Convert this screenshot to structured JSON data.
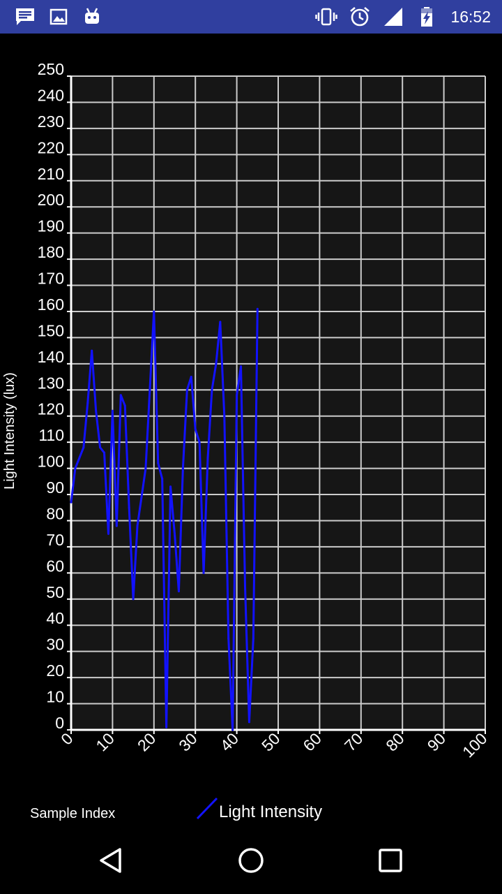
{
  "status_bar": {
    "time": "16:52",
    "left_icons": [
      "message-icon",
      "image-icon",
      "android-icon"
    ],
    "right_icons": [
      "vibrate-icon",
      "alarm-icon",
      "signal-icon",
      "battery-charging-icon"
    ],
    "background": "#303f9f"
  },
  "chart_data": {
    "type": "line",
    "title": "",
    "xlabel": "Sample Index",
    "ylabel": "Light Intensity (lux)",
    "xlim": [
      0,
      100
    ],
    "ylim": [
      0,
      250
    ],
    "x_ticks": [
      "0",
      "10",
      "20",
      "30",
      "40",
      "50",
      "60",
      "70",
      "80",
      "90",
      "100"
    ],
    "y_ticks": [
      "0",
      "10",
      "20",
      "30",
      "40",
      "50",
      "60",
      "70",
      "80",
      "90",
      "100",
      "110",
      "120",
      "130",
      "140",
      "150",
      "160",
      "170",
      "180",
      "190",
      "200",
      "210",
      "220",
      "230",
      "240",
      "250"
    ],
    "grid": true,
    "legend": "bottom-center",
    "plot_background": "#161616",
    "grid_color": "#cccccc",
    "series": [
      {
        "name": "Light Intensity",
        "color": "#1212ff",
        "x": [
          0,
          1,
          2,
          3,
          4,
          5,
          6,
          7,
          8,
          9,
          10,
          11,
          12,
          13,
          14,
          15,
          16,
          17,
          18,
          19,
          20,
          21,
          22,
          23,
          24,
          25,
          26,
          27,
          28,
          29,
          30,
          31,
          32,
          33,
          34,
          35,
          36,
          37,
          38,
          39,
          40,
          41,
          42,
          43,
          44,
          45
        ],
        "values": [
          87,
          100,
          104,
          108,
          125,
          145,
          122,
          108,
          106,
          75,
          122,
          78,
          128,
          124,
          85,
          50,
          78,
          89,
          100,
          130,
          160,
          102,
          96,
          1,
          93,
          75,
          53,
          100,
          130,
          135,
          115,
          110,
          60,
          104,
          130,
          140,
          156,
          120,
          35,
          0,
          128,
          139,
          55,
          3,
          35,
          161
        ]
      }
    ]
  }
}
